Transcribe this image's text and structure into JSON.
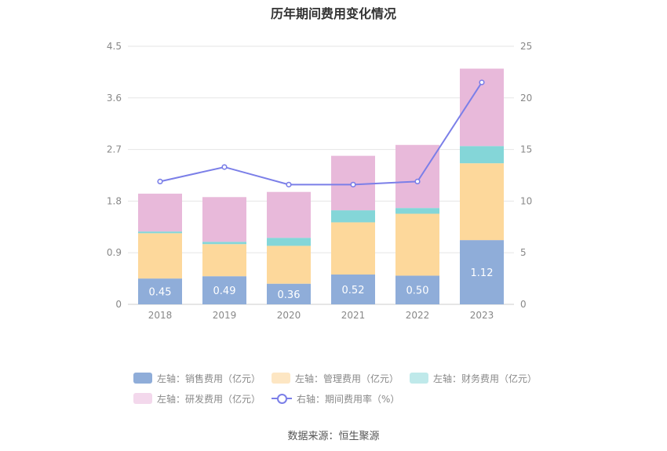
{
  "title": "历年期间费用变化情况",
  "source": "数据来源：恒生聚源",
  "legend": {
    "sales": "左轴：销售费用（亿元）",
    "mgmt": "左轴：管理费用（亿元）",
    "fin": "左轴：财务费用（亿元）",
    "rd": "左轴：研发费用（亿元）",
    "rate": "右轴：期间费用率（%）"
  },
  "colors": {
    "sales": "#8fadd9",
    "mgmt": "#fdd89b",
    "fin": "#84d6d8",
    "rd": "#e8b9da",
    "rate": "#7b7fe8",
    "legend_fin": "#bfe9ea",
    "legend_mgmt": "#fde6c3",
    "legend_rd": "#f3d8ec"
  },
  "chart_data": {
    "type": "bar",
    "stacked": true,
    "categories": [
      "2018",
      "2019",
      "2020",
      "2021",
      "2022",
      "2023"
    ],
    "series": [
      {
        "name": "左轴：销售费用（亿元）",
        "key": "sales",
        "axis": "left",
        "values": [
          0.45,
          0.49,
          0.36,
          0.52,
          0.5,
          1.12
        ],
        "labels": [
          "0.45",
          "0.49",
          "0.36",
          "0.52",
          "0.50",
          "1.12"
        ]
      },
      {
        "name": "左轴：管理费用（亿元）",
        "key": "mgmt",
        "axis": "left",
        "values": [
          0.79,
          0.56,
          0.66,
          0.91,
          1.08,
          1.34
        ]
      },
      {
        "name": "左轴：财务费用（亿元）",
        "key": "fin",
        "axis": "left",
        "values": [
          0.03,
          0.04,
          0.14,
          0.21,
          0.1,
          0.3
        ]
      },
      {
        "name": "左轴：研发费用（亿元）",
        "key": "rd",
        "axis": "left",
        "values": [
          0.66,
          0.78,
          0.8,
          0.95,
          1.1,
          1.35
        ]
      },
      {
        "name": "右轴：期间费用率（%）",
        "key": "rate",
        "axis": "right",
        "type": "line",
        "values": [
          11.9,
          13.3,
          11.6,
          11.6,
          11.9,
          21.5
        ]
      }
    ],
    "y_left": {
      "min": 0,
      "max": 4.5,
      "ticks": [
        "0",
        "0.9",
        "1.8",
        "2.7",
        "3.6",
        "4.5"
      ]
    },
    "y_right": {
      "min": 0,
      "max": 25,
      "ticks": [
        "0",
        "5",
        "10",
        "15",
        "20",
        "25"
      ]
    },
    "grid": true,
    "legend_position": "bottom"
  }
}
